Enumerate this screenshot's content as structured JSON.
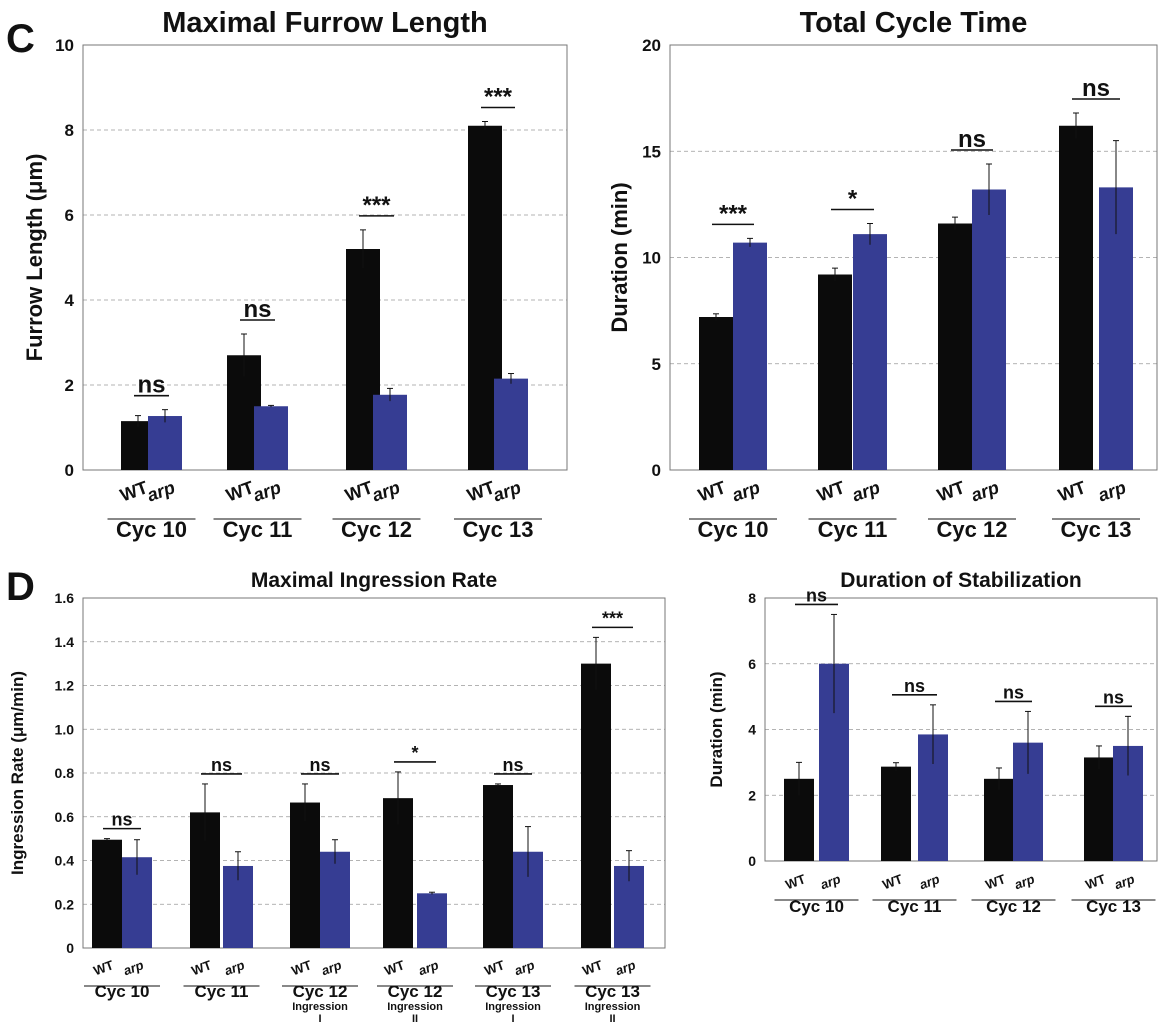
{
  "colors": {
    "wt": "#0b0b0b",
    "arp": "#363d93",
    "frame": "#777777",
    "grid": "#9a9a9a"
  },
  "panels": [
    {
      "letter": "C"
    },
    {
      "letter": ""
    },
    {
      "letter": "D"
    },
    {
      "letter": ""
    }
  ],
  "chart_data": [
    {
      "type": "bar",
      "title": "Maximal Furrow Length",
      "ylabel": "Furrow Length (μm)",
      "xlabel": "",
      "ylim": [
        0,
        10
      ],
      "yticks": [
        "0",
        "2",
        "4",
        "6",
        "8",
        "10"
      ],
      "grid": true,
      "categories": [
        "Cyc 10",
        "Cyc 11",
        "Cyc 12",
        "Cyc 13"
      ],
      "category_sublabels": [
        [],
        [],
        [],
        []
      ],
      "series": [
        {
          "name": "WT",
          "values": [
            1.15,
            2.7,
            5.2,
            8.1
          ],
          "errors": [
            0.13,
            0.5,
            0.45,
            0.1
          ]
        },
        {
          "name": "arp",
          "values": [
            1.27,
            1.5,
            1.77,
            2.15
          ],
          "errors": [
            0.15,
            0.02,
            0.15,
            0.12
          ]
        }
      ],
      "significance": [
        "ns",
        "ns",
        "***",
        "***"
      ]
    },
    {
      "type": "bar",
      "title": "Total Cycle Time",
      "ylabel": "Duration (min)",
      "xlabel": "",
      "ylim": [
        0,
        20
      ],
      "yticks": [
        "0",
        "5",
        "10",
        "15",
        "20"
      ],
      "grid": true,
      "categories": [
        "Cyc 10",
        "Cyc 11",
        "Cyc 12",
        "Cyc 13"
      ],
      "category_sublabels": [
        [],
        [],
        [],
        []
      ],
      "series": [
        {
          "name": "WT",
          "values": [
            7.2,
            9.2,
            11.6,
            16.2
          ],
          "errors": [
            0.15,
            0.3,
            0.3,
            0.6
          ]
        },
        {
          "name": "arp",
          "values": [
            10.7,
            11.1,
            13.2,
            13.3
          ],
          "errors": [
            0.2,
            0.5,
            1.2,
            2.2
          ]
        }
      ],
      "significance": [
        "***",
        "*",
        "ns",
        "ns"
      ]
    },
    {
      "type": "bar",
      "title": "Maximal Ingression Rate",
      "ylabel": "Ingression Rate (μm/min)",
      "xlabel": "",
      "ylim": [
        0,
        1.6
      ],
      "yticks": [
        "0",
        "0.2",
        "0.4",
        "0.6",
        "0.8",
        "1.0",
        "1.2",
        "1.4",
        "1.6"
      ],
      "grid": true,
      "categories": [
        "Cyc 10",
        "Cyc 11",
        "Cyc 12",
        "Cyc 12",
        "Cyc 13",
        "Cyc 13"
      ],
      "category_sublabels": [
        [],
        [],
        [
          "Ingression",
          "I"
        ],
        [
          "Ingression",
          "II"
        ],
        [
          "Ingression",
          "I"
        ],
        [
          "Ingression",
          "II"
        ]
      ],
      "series": [
        {
          "name": "WT",
          "values": [
            0.495,
            0.62,
            0.665,
            0.685,
            0.745,
            1.3
          ],
          "errors": [
            0.005,
            0.13,
            0.085,
            0.12,
            0.005,
            0.12
          ]
        },
        {
          "name": "arp",
          "values": [
            0.415,
            0.375,
            0.44,
            0.25,
            0.44,
            0.375
          ],
          "errors": [
            0.08,
            0.065,
            0.055,
            0.005,
            0.115,
            0.07
          ]
        }
      ],
      "significance": [
        "ns",
        "ns",
        "ns",
        "*",
        "ns",
        "***"
      ]
    },
    {
      "type": "bar",
      "title": "Duration of Stabilization",
      "ylabel": "Duration (min)",
      "xlabel": "",
      "ylim": [
        0,
        8
      ],
      "yticks": [
        "0",
        "2",
        "4",
        "6",
        "8"
      ],
      "grid": true,
      "categories": [
        "Cyc 10",
        "Cyc 11",
        "Cyc 12",
        "Cyc 13"
      ],
      "category_sublabels": [
        [],
        [],
        [],
        []
      ],
      "series": [
        {
          "name": "WT",
          "values": [
            2.5,
            2.87,
            2.5,
            3.15
          ],
          "errors": [
            0.5,
            0.12,
            0.33,
            0.35
          ]
        },
        {
          "name": "arp",
          "values": [
            6.0,
            3.85,
            3.6,
            3.5
          ],
          "errors": [
            1.5,
            0.9,
            0.95,
            0.9
          ]
        }
      ],
      "significance": [
        "ns",
        "ns",
        "ns",
        "ns"
      ]
    }
  ]
}
